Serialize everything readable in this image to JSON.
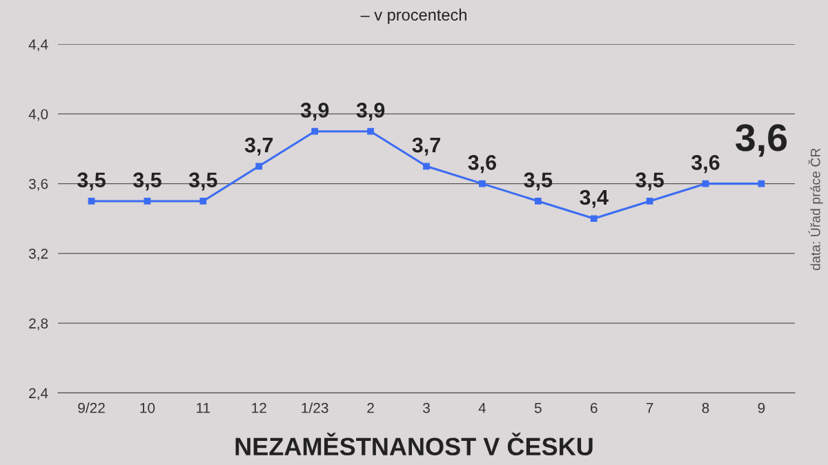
{
  "chart_data": {
    "type": "line",
    "title": "NEZAMĚSTNANOST V ČESKU",
    "subtitle": "– v procentech",
    "categories": [
      "9/22",
      "10",
      "11",
      "12",
      "1/23",
      "2",
      "3",
      "4",
      "5",
      "6",
      "7",
      "8",
      "9"
    ],
    "series": [
      {
        "color": "#3b6cf2",
        "values": [
          3.5,
          3.5,
          3.5,
          3.7,
          3.9,
          3.9,
          3.7,
          3.6,
          3.5,
          3.4,
          3.5,
          3.6,
          3.6
        ],
        "value_labels": [
          "3,5",
          "3,5",
          "3,5",
          "3,7",
          "3,9",
          "3,9",
          "3,7",
          "3,6",
          "3,5",
          "3,4",
          "3,5",
          "3,6",
          "3,6"
        ]
      }
    ],
    "ylim": [
      2.4,
      4.4
    ],
    "yticks": [
      {
        "value": 2.4,
        "label": "2,4"
      },
      {
        "value": 2.8,
        "label": "2,8"
      },
      {
        "value": 3.2,
        "label": "3,2"
      },
      {
        "value": 3.6,
        "label": "3,6"
      },
      {
        "value": 4.0,
        "label": "4,0"
      },
      {
        "value": 4.4,
        "label": "4,4"
      }
    ],
    "grid": "y",
    "marker": "square",
    "line_style": "solid",
    "annotations": [
      "data: Úřad práce ČR"
    ]
  }
}
